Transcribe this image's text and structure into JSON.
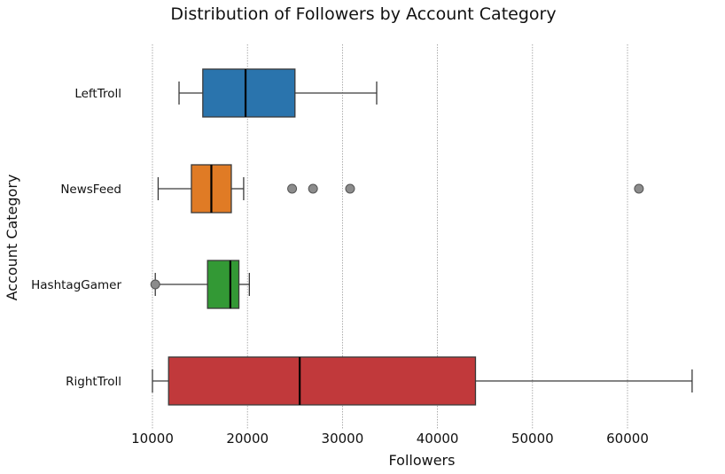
{
  "chart_data": {
    "type": "box",
    "title": "Distribution of Followers by Account Category",
    "xlabel": "Followers",
    "ylabel": "Account Category",
    "xlim": [
      8000,
      68000
    ],
    "xticks": [
      "10000",
      "20000",
      "30000",
      "40000",
      "50000",
      "60000"
    ],
    "grid": "vertical dotted",
    "categories": [
      "LeftTroll",
      "NewsFeed",
      "HashtagGamer",
      "RightTroll"
    ],
    "series": [
      {
        "name": "LeftTroll",
        "color": "#2a74ad",
        "whisker_low": 12800,
        "q1": 15300,
        "median": 19800,
        "q3": 25000,
        "whisker_high": 33600,
        "outliers": []
      },
      {
        "name": "NewsFeed",
        "color": "#e07b25",
        "whisker_low": 10600,
        "q1": 14100,
        "median": 16200,
        "q3": 18300,
        "whisker_high": 19600,
        "outliers": [
          24700,
          26900,
          30800,
          61200
        ]
      },
      {
        "name": "HashtagGamer",
        "color": "#339935",
        "whisker_low": 10300,
        "q1": 15800,
        "median": 18200,
        "q3": 19100,
        "whisker_high": 20200,
        "outliers": [
          10300
        ]
      },
      {
        "name": "RightTroll",
        "color": "#c1393b",
        "whisker_low": 10000,
        "q1": 11700,
        "median": 25500,
        "q3": 44000,
        "whisker_high": 66800,
        "outliers": []
      }
    ]
  }
}
